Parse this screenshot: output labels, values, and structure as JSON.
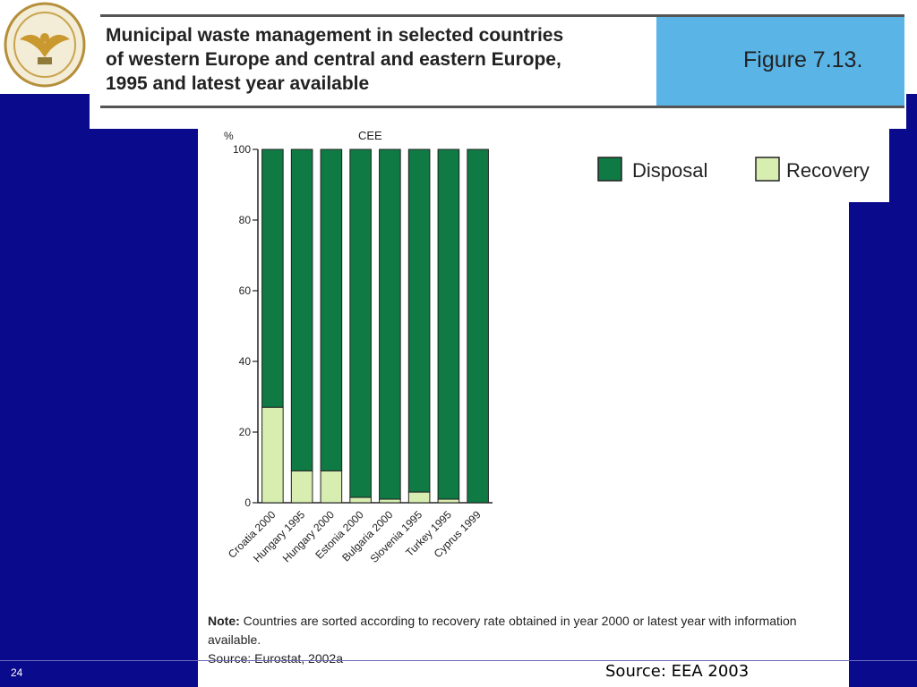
{
  "header": {
    "title": "Municipal waste management in selected countries\nof western Europe and central and eastern Europe,\n1995 and latest year available",
    "figure_label": "Figure 7.13."
  },
  "colors": {
    "slide_background": "#0a0a8c",
    "header_accent": "#5ab4e6",
    "disposal": "#0f7a44",
    "recovery": "#d7eeb0"
  },
  "logo": {
    "icon": "university-seal-icon"
  },
  "note": {
    "label": "Note:",
    "text": "Countries are sorted according to recovery rate obtained in year 2000 or latest year with information available.",
    "source": "Source: Eurostat, 2002a"
  },
  "footer": {
    "slide_number": "24",
    "source": "Source: EEA  2003"
  },
  "chart_data": {
    "type": "bar",
    "stacked": true,
    "title": "CEE",
    "ylabel": "%",
    "ylim": [
      0,
      100
    ],
    "yticks": [
      "0",
      "20",
      "40",
      "60",
      "80",
      "100"
    ],
    "categories": [
      "Croatia 2000",
      "Hungary 1995",
      "Hungary 2000",
      "Estonia 2000",
      "Bulgaria 2000",
      "Slovenia 1995",
      "Turkey 1995",
      "Cyprus 1999"
    ],
    "series": [
      {
        "name": "Recovery",
        "values": [
          27,
          9,
          9,
          1.5,
          1,
          3,
          1,
          0
        ]
      },
      {
        "name": "Disposal",
        "values": [
          73,
          91,
          91,
          98.5,
          99,
          97,
          99,
          100
        ]
      }
    ],
    "legend": {
      "position": "top-right",
      "items": [
        "Disposal",
        "Recovery"
      ]
    },
    "grid": false
  }
}
